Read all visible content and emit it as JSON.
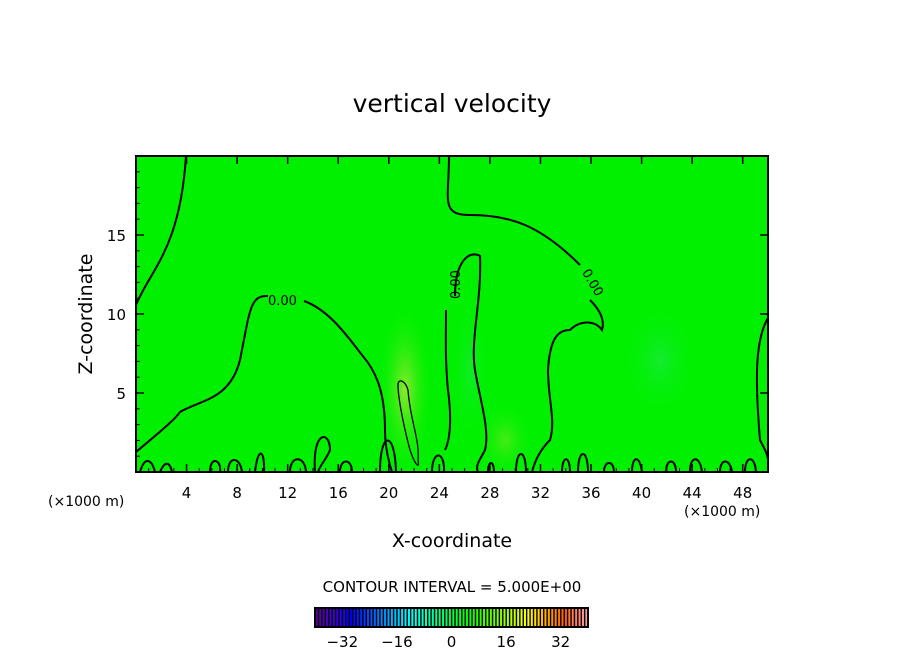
{
  "chart_data": {
    "type": "contour",
    "title": "vertical velocity",
    "xlabel": "X-coordinate",
    "ylabel": "Z-coordinate",
    "x_unit_left": "(×1000 m)",
    "x_unit_right": "(×1000 m)",
    "xlim": [
      0,
      50
    ],
    "ylim": [
      0,
      20
    ],
    "xticks": [
      4,
      8,
      12,
      16,
      20,
      24,
      28,
      32,
      36,
      40,
      44,
      48
    ],
    "yticks": [
      5,
      10,
      15
    ],
    "contour_interval_label": "CONTOUR INTERVAL = 5.000E+00",
    "contour_interval": 5,
    "contour_labels": [
      "0.00",
      "0.00",
      "0.00"
    ],
    "colorbar": {
      "range": [
        -40,
        40
      ],
      "ticks": [
        -32,
        -16,
        0,
        16,
        32
      ],
      "tick_labels": [
        "−32",
        "−16",
        "0",
        "16",
        "32"
      ],
      "colormap": "rainbow (purple-blue-cyan-green-yellow-red-pink)"
    },
    "background_color": "#00f000",
    "grid": false
  }
}
